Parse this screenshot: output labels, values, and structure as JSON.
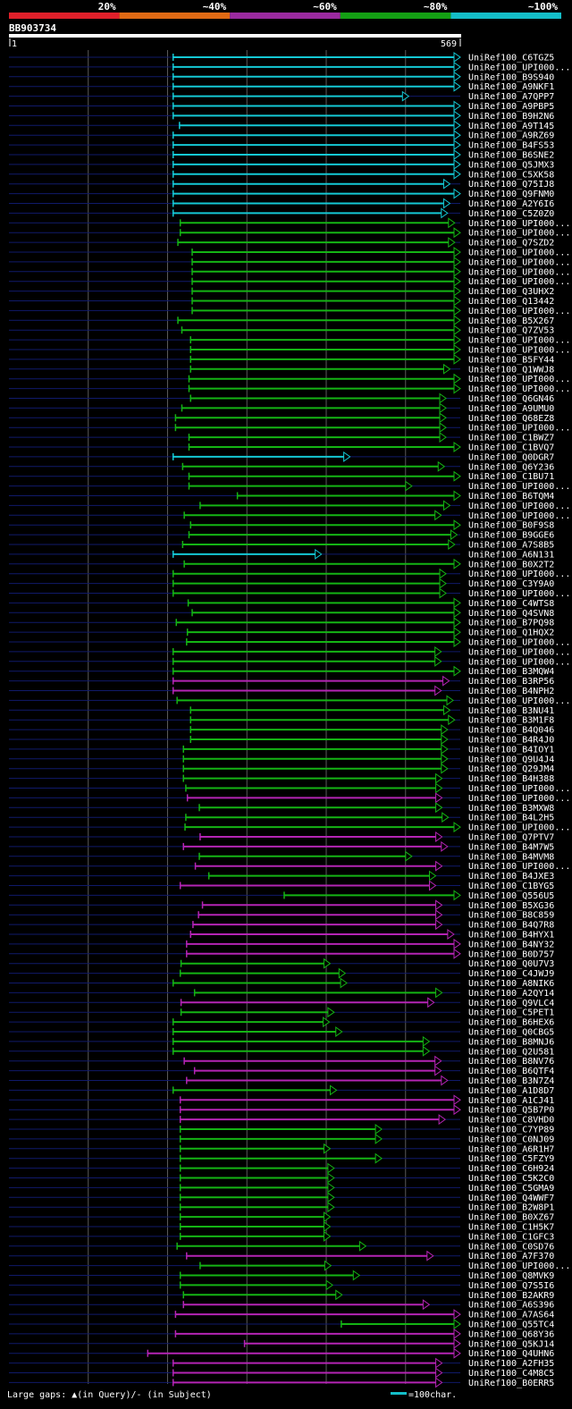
{
  "chart_data": {
    "type": "alignment-overview",
    "query": "BB903734",
    "query_length": 569,
    "start_label": "1",
    "end_label": "569",
    "identity_legend": [
      {
        "label": "20%",
        "color": "#e0202a"
      },
      {
        "label": "~40%",
        "color": "#e06a14"
      },
      {
        "label": "~60%",
        "color": "#9b2aa0"
      },
      {
        "label": "~80%",
        "color": "#14a014"
      },
      {
        "label": "~100%",
        "color": "#14bec8"
      }
    ],
    "footer_gaps_text": "Large gaps: ▲(in Query)/- (in Subject)",
    "footer_scale_text": "=100char.",
    "hits": [
      {
        "name": "UniRef100_C6TGZ5",
        "start": 207,
        "end": 569,
        "id": "c"
      },
      {
        "name": "UniRef100_UPI000...",
        "start": 207,
        "end": 569,
        "id": "c"
      },
      {
        "name": "UniRef100_B9S940",
        "start": 207,
        "end": 569,
        "id": "c"
      },
      {
        "name": "UniRef100_A9NKF1",
        "start": 207,
        "end": 569,
        "id": "c"
      },
      {
        "name": "UniRef100_A7QPP7",
        "start": 207,
        "end": 504,
        "id": "c"
      },
      {
        "name": "UniRef100_A9PBP5",
        "start": 207,
        "end": 569,
        "id": "c"
      },
      {
        "name": "UniRef100_B9H2N6",
        "start": 207,
        "end": 569,
        "id": "c"
      },
      {
        "name": "UniRef100_A9T145",
        "start": 215,
        "end": 569,
        "id": "c"
      },
      {
        "name": "UniRef100_A9RZ69",
        "start": 207,
        "end": 569,
        "id": "c"
      },
      {
        "name": "UniRef100_B4FS53",
        "start": 207,
        "end": 569,
        "id": "c"
      },
      {
        "name": "UniRef100_B6SNE2",
        "start": 207,
        "end": 569,
        "id": "c"
      },
      {
        "name": "UniRef100_Q5JMX3",
        "start": 207,
        "end": 569,
        "id": "c"
      },
      {
        "name": "UniRef100_C5XK58",
        "start": 207,
        "end": 569,
        "id": "c"
      },
      {
        "name": "UniRef100_Q75IJ8",
        "start": 207,
        "end": 556,
        "id": "c"
      },
      {
        "name": "UniRef100_Q9FNM0",
        "start": 207,
        "end": 569,
        "id": "c"
      },
      {
        "name": "UniRef100_A2Y6I6",
        "start": 207,
        "end": 556,
        "id": "c"
      },
      {
        "name": "UniRef100_C5Z0Z0",
        "start": 207,
        "end": 553,
        "id": "c"
      },
      {
        "name": "UniRef100_UPI000...",
        "start": 216,
        "end": 562,
        "id": "g"
      },
      {
        "name": "UniRef100_UPI000...",
        "start": 216,
        "end": 569,
        "id": "g"
      },
      {
        "name": "UniRef100_Q7SZD2",
        "start": 213,
        "end": 562,
        "id": "g"
      },
      {
        "name": "UniRef100_UPI000...",
        "start": 231,
        "end": 569,
        "id": "g"
      },
      {
        "name": "UniRef100_UPI000...",
        "start": 231,
        "end": 569,
        "id": "g"
      },
      {
        "name": "UniRef100_UPI000...",
        "start": 231,
        "end": 569,
        "id": "g"
      },
      {
        "name": "UniRef100_UPI000...",
        "start": 231,
        "end": 569,
        "id": "g"
      },
      {
        "name": "UniRef100_Q3UHX2",
        "start": 231,
        "end": 569,
        "id": "g"
      },
      {
        "name": "UniRef100_Q13442",
        "start": 231,
        "end": 569,
        "id": "g"
      },
      {
        "name": "UniRef100_UPI000...",
        "start": 231,
        "end": 569,
        "id": "g"
      },
      {
        "name": "UniRef100_B5X267",
        "start": 213,
        "end": 569,
        "id": "g"
      },
      {
        "name": "UniRef100_Q7ZV53",
        "start": 218,
        "end": 569,
        "id": "g"
      },
      {
        "name": "UniRef100_UPI000...",
        "start": 229,
        "end": 569,
        "id": "g"
      },
      {
        "name": "UniRef100_UPI000...",
        "start": 229,
        "end": 569,
        "id": "g"
      },
      {
        "name": "UniRef100_B5FY44",
        "start": 229,
        "end": 569,
        "id": "g"
      },
      {
        "name": "UniRef100_Q1WWJ8",
        "start": 229,
        "end": 556,
        "id": "g"
      },
      {
        "name": "UniRef100_UPI000...",
        "start": 227,
        "end": 569,
        "id": "g"
      },
      {
        "name": "UniRef100_UPI000...",
        "start": 227,
        "end": 569,
        "id": "g"
      },
      {
        "name": "UniRef100_Q6GN46",
        "start": 229,
        "end": 551,
        "id": "g"
      },
      {
        "name": "UniRef100_A9UMU0",
        "start": 218,
        "end": 551,
        "id": "g"
      },
      {
        "name": "UniRef100_Q68EZ8",
        "start": 210,
        "end": 551,
        "id": "g"
      },
      {
        "name": "UniRef100_UPI000...",
        "start": 210,
        "end": 551,
        "id": "g"
      },
      {
        "name": "UniRef100_C1BWZ7",
        "start": 227,
        "end": 551,
        "id": "g"
      },
      {
        "name": "UniRef100_C1BVQ7",
        "start": 227,
        "end": 569,
        "id": "g"
      },
      {
        "name": "UniRef100_Q0DGR7",
        "start": 207,
        "end": 430,
        "id": "c"
      },
      {
        "name": "UniRef100_Q6Y236",
        "start": 219,
        "end": 549,
        "id": "g"
      },
      {
        "name": "UniRef100_C1BU71",
        "start": 227,
        "end": 569,
        "id": "g"
      },
      {
        "name": "UniRef100_UPI000...",
        "start": 227,
        "end": 508,
        "id": "g"
      },
      {
        "name": "UniRef100_B6TQM4",
        "start": 288,
        "end": 569,
        "id": "g"
      },
      {
        "name": "UniRef100_UPI000...",
        "start": 241,
        "end": 556,
        "id": "g"
      },
      {
        "name": "UniRef100_UPI000...",
        "start": 221,
        "end": 545,
        "id": "g"
      },
      {
        "name": "UniRef100_B0F9S8",
        "start": 229,
        "end": 569,
        "id": "g"
      },
      {
        "name": "UniRef100_B9GGE6",
        "start": 227,
        "end": 565,
        "id": "g"
      },
      {
        "name": "UniRef100_A7S8B5",
        "start": 219,
        "end": 562,
        "id": "g"
      },
      {
        "name": "UniRef100_A6N131",
        "start": 207,
        "end": 394,
        "id": "c"
      },
      {
        "name": "UniRef100_B0X2T2",
        "start": 221,
        "end": 569,
        "id": "g"
      },
      {
        "name": "UniRef100_UPI000...",
        "start": 207,
        "end": 551,
        "id": "g"
      },
      {
        "name": "UniRef100_C3Y9A0",
        "start": 207,
        "end": 551,
        "id": "g"
      },
      {
        "name": "UniRef100_UPI000...",
        "start": 207,
        "end": 551,
        "id": "g"
      },
      {
        "name": "UniRef100_C4WTS8",
        "start": 226,
        "end": 569,
        "id": "g"
      },
      {
        "name": "UniRef100_Q4SVN8",
        "start": 231,
        "end": 569,
        "id": "g"
      },
      {
        "name": "UniRef100_B7PQ98",
        "start": 211,
        "end": 569,
        "id": "g"
      },
      {
        "name": "UniRef100_Q1HQX2",
        "start": 225,
        "end": 569,
        "id": "g"
      },
      {
        "name": "UniRef100_UPI000...",
        "start": 224,
        "end": 569,
        "id": "g"
      },
      {
        "name": "UniRef100_UPI000...",
        "start": 207,
        "end": 545,
        "id": "g"
      },
      {
        "name": "UniRef100_UPI000...",
        "start": 207,
        "end": 545,
        "id": "g"
      },
      {
        "name": "UniRef100_B3MQW4",
        "start": 207,
        "end": 569,
        "id": "g"
      },
      {
        "name": "UniRef100_B3RP56",
        "start": 207,
        "end": 555,
        "id": "m"
      },
      {
        "name": "UniRef100_B4NPH2",
        "start": 207,
        "end": 545,
        "id": "m"
      },
      {
        "name": "UniRef100_UPI000...",
        "start": 212,
        "end": 560,
        "id": "g"
      },
      {
        "name": "UniRef100_B3NU41",
        "start": 229,
        "end": 556,
        "id": "g"
      },
      {
        "name": "UniRef100_B3M1F8",
        "start": 229,
        "end": 562,
        "id": "g"
      },
      {
        "name": "UniRef100_B4Q046",
        "start": 229,
        "end": 553,
        "id": "g"
      },
      {
        "name": "UniRef100_B4R4J0",
        "start": 229,
        "end": 553,
        "id": "g"
      },
      {
        "name": "UniRef100_B4IOY1",
        "start": 220,
        "end": 553,
        "id": "g"
      },
      {
        "name": "UniRef100_Q9U4J4",
        "start": 220,
        "end": 553,
        "id": "g"
      },
      {
        "name": "UniRef100_Q29JM4",
        "start": 220,
        "end": 553,
        "id": "g"
      },
      {
        "name": "UniRef100_B4H388",
        "start": 220,
        "end": 546,
        "id": "g"
      },
      {
        "name": "UniRef100_UPI000...",
        "start": 223,
        "end": 546,
        "id": "g"
      },
      {
        "name": "UniRef100_UPI000...",
        "start": 225,
        "end": 546,
        "id": "m"
      },
      {
        "name": "UniRef100_B3MXW8",
        "start": 240,
        "end": 546,
        "id": "g"
      },
      {
        "name": "UniRef100_B4L2H5",
        "start": 223,
        "end": 554,
        "id": "g"
      },
      {
        "name": "UniRef100_UPI000...",
        "start": 222,
        "end": 569,
        "id": "g"
      },
      {
        "name": "UniRef100_Q7PTV7",
        "start": 241,
        "end": 546,
        "id": "m"
      },
      {
        "name": "UniRef100_B4M7W5",
        "start": 220,
        "end": 553,
        "id": "m"
      },
      {
        "name": "UniRef100_B4MVM8",
        "start": 240,
        "end": 508,
        "id": "g"
      },
      {
        "name": "UniRef100_UPI000...",
        "start": 235,
        "end": 546,
        "id": "m"
      },
      {
        "name": "UniRef100_B4JXE3",
        "start": 252,
        "end": 538,
        "id": "g"
      },
      {
        "name": "UniRef100_C1BYG5",
        "start": 216,
        "end": 538,
        "id": "m"
      },
      {
        "name": "UniRef100_Q556U5",
        "start": 347,
        "end": 569,
        "id": "g"
      },
      {
        "name": "UniRef100_B5XG36",
        "start": 244,
        "end": 546,
        "id": "m"
      },
      {
        "name": "UniRef100_B8C859",
        "start": 239,
        "end": 546,
        "id": "m"
      },
      {
        "name": "UniRef100_B4Q7R8",
        "start": 232,
        "end": 546,
        "id": "m"
      },
      {
        "name": "UniRef100_B4HYX1",
        "start": 229,
        "end": 561,
        "id": "m"
      },
      {
        "name": "UniRef100_B4NY32",
        "start": 224,
        "end": 569,
        "id": "m"
      },
      {
        "name": "UniRef100_B0D757",
        "start": 224,
        "end": 569,
        "id": "m"
      },
      {
        "name": "UniRef100_Q0U7V3",
        "start": 217,
        "end": 405,
        "id": "g"
      },
      {
        "name": "UniRef100_C4JWJ9",
        "start": 216,
        "end": 424,
        "id": "g"
      },
      {
        "name": "UniRef100_A8NIK6",
        "start": 207,
        "end": 426,
        "id": "g"
      },
      {
        "name": "UniRef100_A2QY14",
        "start": 234,
        "end": 546,
        "id": "g"
      },
      {
        "name": "UniRef100_Q9VLC4",
        "start": 217,
        "end": 536,
        "id": "m"
      },
      {
        "name": "UniRef100_C5PET1",
        "start": 217,
        "end": 410,
        "id": "g"
      },
      {
        "name": "UniRef100_B6HEX6",
        "start": 207,
        "end": 404,
        "id": "g"
      },
      {
        "name": "UniRef100_Q0CBG5",
        "start": 207,
        "end": 420,
        "id": "g"
      },
      {
        "name": "UniRef100_B8MNJ6",
        "start": 207,
        "end": 530,
        "id": "g"
      },
      {
        "name": "UniRef100_Q2U581",
        "start": 207,
        "end": 530,
        "id": "g"
      },
      {
        "name": "UniRef100_B8NV76",
        "start": 221,
        "end": 545,
        "id": "m"
      },
      {
        "name": "UniRef100_B6QTF4",
        "start": 234,
        "end": 545,
        "id": "m"
      },
      {
        "name": "UniRef100_B3N7Z4",
        "start": 224,
        "end": 553,
        "id": "m"
      },
      {
        "name": "UniRef100_A1D8D7",
        "start": 207,
        "end": 413,
        "id": "g"
      },
      {
        "name": "UniRef100_A1CJ41",
        "start": 216,
        "end": 569,
        "id": "m"
      },
      {
        "name": "UniRef100_Q5B7P0",
        "start": 216,
        "end": 569,
        "id": "m"
      },
      {
        "name": "UniRef100_C8VHD0",
        "start": 216,
        "end": 550,
        "id": "m"
      },
      {
        "name": "UniRef100_C7YP89",
        "start": 216,
        "end": 470,
        "id": "g"
      },
      {
        "name": "UniRef100_C0NJ09",
        "start": 216,
        "end": 470,
        "id": "g"
      },
      {
        "name": "UniRef100_A6R1H7",
        "start": 216,
        "end": 405,
        "id": "g"
      },
      {
        "name": "UniRef100_C5FZY9",
        "start": 216,
        "end": 470,
        "id": "g"
      },
      {
        "name": "UniRef100_C6H924",
        "start": 216,
        "end": 410,
        "id": "g"
      },
      {
        "name": "UniRef100_C5K2C0",
        "start": 216,
        "end": 410,
        "id": "g"
      },
      {
        "name": "UniRef100_C5GMA9",
        "start": 216,
        "end": 410,
        "id": "g"
      },
      {
        "name": "UniRef100_Q4WWF7",
        "start": 216,
        "end": 410,
        "id": "g"
      },
      {
        "name": "UniRef100_B2W8P1",
        "start": 216,
        "end": 410,
        "id": "g"
      },
      {
        "name": "UniRef100_B0XZ67",
        "start": 216,
        "end": 405,
        "id": "g"
      },
      {
        "name": "UniRef100_C1H5K7",
        "start": 216,
        "end": 405,
        "id": "g"
      },
      {
        "name": "UniRef100_C1GFC3",
        "start": 216,
        "end": 405,
        "id": "g"
      },
      {
        "name": "UniRef100_C0SD76",
        "start": 212,
        "end": 450,
        "id": "g"
      },
      {
        "name": "UniRef100_A7F370",
        "start": 224,
        "end": 535,
        "id": "m"
      },
      {
        "name": "UniRef100_UPI000...",
        "start": 241,
        "end": 406,
        "id": "g"
      },
      {
        "name": "UniRef100_Q8MVK9",
        "start": 216,
        "end": 442,
        "id": "g"
      },
      {
        "name": "UniRef100_Q7S5I6",
        "start": 216,
        "end": 408,
        "id": "g"
      },
      {
        "name": "UniRef100_B2AKR9",
        "start": 220,
        "end": 420,
        "id": "g"
      },
      {
        "name": "UniRef100_A6S396",
        "start": 220,
        "end": 530,
        "id": "m"
      },
      {
        "name": "UniRef100_A7AS64",
        "start": 210,
        "end": 569,
        "id": "m"
      },
      {
        "name": "UniRef100_Q55TC4",
        "start": 419,
        "end": 569,
        "id": "g"
      },
      {
        "name": "UniRef100_Q68Y36",
        "start": 210,
        "end": 569,
        "id": "m"
      },
      {
        "name": "UniRef100_Q5KJ14",
        "start": 297,
        "end": 569,
        "id": "m"
      },
      {
        "name": "UniRef100_Q4UHN6",
        "start": 175,
        "end": 569,
        "id": "m"
      },
      {
        "name": "UniRef100_A2FH35",
        "start": 207,
        "end": 546,
        "id": "m"
      },
      {
        "name": "UniRef100_C4M8C5",
        "start": 207,
        "end": 546,
        "id": "m"
      },
      {
        "name": "UniRef100_B0ERR5",
        "start": 207,
        "end": 546,
        "id": "m"
      }
    ]
  }
}
